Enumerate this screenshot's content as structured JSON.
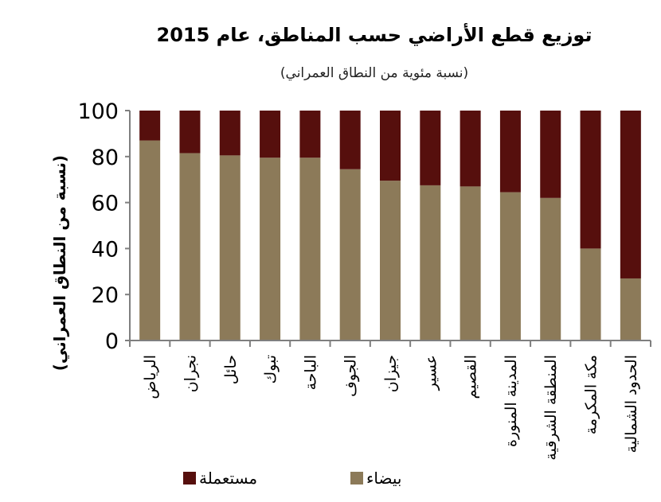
{
  "chart_data": {
    "type": "bar",
    "stacked": true,
    "title": "توزيع قطع الأراضي حسب المناطق، عام 2015",
    "subtitle": "(نسبة مئوية من النطاق العمراني)",
    "xlabel": "",
    "ylabel": "(نسبة من النطاق العمراني)",
    "ylim": [
      0,
      100
    ],
    "yticks": [
      0,
      20,
      40,
      60,
      80,
      100
    ],
    "grid": false,
    "legend_position": "bottom",
    "categories": [
      "الرياض",
      "نجران",
      "حائل",
      "تبوك",
      "الباحة",
      "الجوف",
      "جيزان",
      "عسير",
      "القصيم",
      "المدينة المنورة",
      "المنطقة الشرقية",
      "مكة المكرمة",
      "الحدود الشمالية"
    ],
    "series": [
      {
        "name": "بيضاء",
        "color": "#8c7a59",
        "values": [
          87,
          81.5,
          80.5,
          79.5,
          79.5,
          74.5,
          69.5,
          67.5,
          67,
          64.5,
          62,
          40,
          27
        ]
      },
      {
        "name": "مستعملة",
        "color": "#560f0d",
        "values": [
          13,
          18.5,
          19.5,
          20.5,
          20.5,
          25.5,
          30.5,
          32.5,
          33,
          35.5,
          38,
          60,
          73
        ]
      }
    ]
  }
}
